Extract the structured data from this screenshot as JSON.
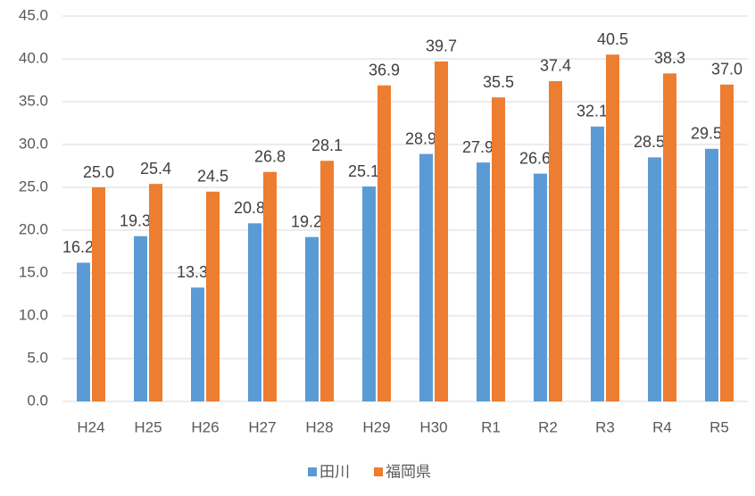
{
  "chart_data": {
    "type": "bar",
    "categories": [
      "H24",
      "H25",
      "H26",
      "H27",
      "H28",
      "H29",
      "H30",
      "R1",
      "R2",
      "R3",
      "R4",
      "R5"
    ],
    "series": [
      {
        "name": "田川",
        "color": "#5b9bd5",
        "values": [
          16.2,
          19.3,
          13.3,
          20.8,
          19.2,
          25.1,
          28.9,
          27.9,
          26.6,
          32.1,
          28.5,
          29.5
        ]
      },
      {
        "name": "福岡県",
        "color": "#ed7d31",
        "values": [
          25.0,
          25.4,
          24.5,
          26.8,
          28.1,
          36.9,
          39.7,
          35.5,
          37.4,
          40.5,
          38.3,
          37.0
        ],
        "value_labels": [
          "25.0",
          "25.4",
          "24.5",
          "26.8",
          "28.1",
          "36.9",
          "39.7",
          "35.5",
          "37.4",
          "40.5",
          "38.3",
          "37.0"
        ]
      }
    ],
    "ylim": [
      0,
      45
    ],
    "yticks": [
      {
        "value": 0,
        "label": "0.0"
      },
      {
        "value": 5,
        "label": "5.0"
      },
      {
        "value": 10,
        "label": "10.0"
      },
      {
        "value": 15,
        "label": "15.0"
      },
      {
        "value": 20,
        "label": "20.0"
      },
      {
        "value": 25,
        "label": "25.0"
      },
      {
        "value": 30,
        "label": "30.0"
      },
      {
        "value": 35,
        "label": "35.0"
      },
      {
        "value": 40,
        "label": "40.0"
      },
      {
        "value": 45,
        "label": "45.0"
      }
    ],
    "grid": true,
    "legend": "bottom"
  }
}
